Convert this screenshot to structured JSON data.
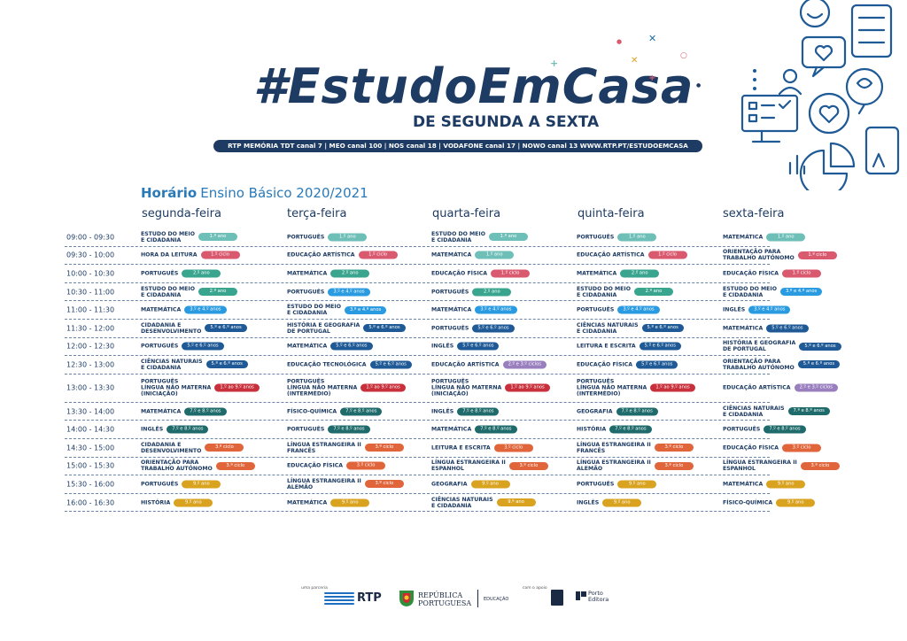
{
  "header": {
    "title": "#EstudoEmCasa",
    "subtitle": "DE SEGUNDA A SEXTA",
    "channels": "RTP MEMÓRIA  TDT canal 7 | MEO canal 100 | NOS canal 18 | VODAFONE canal 17 | NOWO canal 13    WWW.RTP.PT/ESTUDOEMCASA"
  },
  "schedule": {
    "heading_bold": "Horário",
    "heading_rest": "Ensino Básico 2020/2021",
    "days": [
      "segunda-feira",
      "terça-feira",
      "quarta-feira",
      "quinta-feira",
      "sexta-feira"
    ],
    "rows": [
      {
        "time": "09:00 - 09:30",
        "cells": [
          {
            "subject": [
              "ESTUDO DO MEIO",
              "E CIDADANIA"
            ],
            "level": "1.º ano",
            "color": "#6fbfb9"
          },
          {
            "subject": [
              "PORTUGUÊS"
            ],
            "level": "1.º ano",
            "color": "#6fbfb9"
          },
          {
            "subject": [
              "ESTUDO DO MEIO",
              "E CIDADANIA"
            ],
            "level": "1.º ano",
            "color": "#6fbfb9"
          },
          {
            "subject": [
              "PORTUGUÊS"
            ],
            "level": "1.º ano",
            "color": "#6fbfb9"
          },
          {
            "subject": [
              "MATEMÁTICA"
            ],
            "level": "1.º ano",
            "color": "#6fbfb9"
          }
        ]
      },
      {
        "time": "09:30 - 10:00",
        "cells": [
          {
            "subject": [
              "HORA DA LEITURA"
            ],
            "level": "1.º ciclo",
            "color": "#d9596f"
          },
          {
            "subject": [
              "EDUCAÇÃO ARTÍSTICA"
            ],
            "level": "1.º ciclo",
            "color": "#d9596f"
          },
          {
            "subject": [
              "MATEMÁTICA"
            ],
            "level": "1.º ano",
            "color": "#6fbfb9"
          },
          {
            "subject": [
              "EDUCAÇÃO ARTÍSTICA"
            ],
            "level": "1.º ciclo",
            "color": "#d9596f"
          },
          {
            "subject": [
              "ORIENTAÇÃO PARA",
              "TRABALHO AUTÓNOMO"
            ],
            "level": "1.º ciclo",
            "color": "#d9596f"
          }
        ]
      },
      {
        "time": "10:00 - 10:30",
        "cells": [
          {
            "subject": [
              "PORTUGUÊS"
            ],
            "level": "2.º ano",
            "color": "#3aa58f"
          },
          {
            "subject": [
              "MATEMÁTICA"
            ],
            "level": "2.º ano",
            "color": "#3aa58f"
          },
          {
            "subject": [
              "EDUCAÇÃO FÍSICA"
            ],
            "level": "1.º ciclo",
            "color": "#d9596f"
          },
          {
            "subject": [
              "MATEMÁTICA"
            ],
            "level": "2.º ano",
            "color": "#3aa58f"
          },
          {
            "subject": [
              "EDUCAÇÃO FÍSICA"
            ],
            "level": "1.º ciclo",
            "color": "#d9596f"
          }
        ]
      },
      {
        "time": "10:30 - 11:00",
        "cells": [
          {
            "subject": [
              "ESTUDO DO MEIO",
              "E CIDADANIA"
            ],
            "level": "2.º ano",
            "color": "#3aa58f"
          },
          {
            "subject": [
              "PORTUGUÊS"
            ],
            "level": "3.º e 4.º anos",
            "color": "#2a9be0"
          },
          {
            "subject": [
              "PORTUGUÊS"
            ],
            "level": "2.º ano",
            "color": "#3aa58f"
          },
          {
            "subject": [
              "ESTUDO DO MEIO",
              "E CIDADANIA"
            ],
            "level": "2.º ano",
            "color": "#3aa58f"
          },
          {
            "subject": [
              "ESTUDO DO MEIO",
              "E CIDADANIA"
            ],
            "level": "3.º e 4.º anos",
            "color": "#2a9be0"
          }
        ]
      },
      {
        "time": "11:00 - 11:30",
        "cells": [
          {
            "subject": [
              "MATEMÁTICA"
            ],
            "level": "3.º e 4.º anos",
            "color": "#2a9be0"
          },
          {
            "subject": [
              "ESTUDO DO MEIO",
              "E CIDADANIA"
            ],
            "level": "3.º e 4.º anos",
            "color": "#2a9be0"
          },
          {
            "subject": [
              "MATEMÁTICA"
            ],
            "level": "3.º e 4.º anos",
            "color": "#2a9be0"
          },
          {
            "subject": [
              "PORTUGUÊS"
            ],
            "level": "3.º e 4.º anos",
            "color": "#2a9be0"
          },
          {
            "subject": [
              "INGLÊS"
            ],
            "level": "3.º e 4.º anos",
            "color": "#2a9be0"
          }
        ]
      },
      {
        "time": "11:30 - 12:00",
        "cells": [
          {
            "subject": [
              "CIDADANIA E",
              "DESENVOLVIMENTO"
            ],
            "level": "5.º e 6.º anos",
            "color": "#1f5a96"
          },
          {
            "subject": [
              "HISTÓRIA E GEOGRAFIA",
              "DE PORTUGAL"
            ],
            "level": "5.º e 6.º anos",
            "color": "#1f5a96"
          },
          {
            "subject": [
              "PORTUGUÊS"
            ],
            "level": "5.º e 6.º anos",
            "color": "#1f5a96"
          },
          {
            "subject": [
              "CIÊNCIAS NATURAIS",
              "E CIDADANIA"
            ],
            "level": "5.º e 6.º anos",
            "color": "#1f5a96"
          },
          {
            "subject": [
              "MATEMÁTICA"
            ],
            "level": "5.º e 6.º anos",
            "color": "#1f5a96"
          }
        ]
      },
      {
        "time": "12:00 - 12:30",
        "cells": [
          {
            "subject": [
              "PORTUGUÊS"
            ],
            "level": "5.º e 6.º anos",
            "color": "#1f5a96"
          },
          {
            "subject": [
              "MATEMÁTICA"
            ],
            "level": "5.º e 6.º anos",
            "color": "#1f5a96"
          },
          {
            "subject": [
              "INGLÊS"
            ],
            "level": "5.º e 6.º anos",
            "color": "#1f5a96"
          },
          {
            "subject": [
              "LEITURA E ESCRITA"
            ],
            "level": "5.º e 6.º anos",
            "color": "#1f5a96"
          },
          {
            "subject": [
              "HISTÓRIA E GEOGRAFIA",
              "DE PORTUGAL"
            ],
            "level": "5.º e 6.º anos",
            "color": "#1f5a96"
          }
        ]
      },
      {
        "time": "12:30 - 13:00",
        "cells": [
          {
            "subject": [
              "CIÊNCIAS NATURAIS",
              "E CIDADANIA"
            ],
            "level": "5.º e 6.º anos",
            "color": "#1f5a96"
          },
          {
            "subject": [
              "EDUCAÇÃO TECNOLÓGICA"
            ],
            "level": "5.º e 6.º anos",
            "color": "#1f5a96"
          },
          {
            "subject": [
              "EDUCAÇÃO ARTÍSTICA"
            ],
            "level": "2.º e 3.º ciclos",
            "color": "#9a7fbf"
          },
          {
            "subject": [
              "EDUCAÇÃO FÍSICA"
            ],
            "level": "5.º e 6.º anos",
            "color": "#1f5a96"
          },
          {
            "subject": [
              "ORIENTAÇÃO PARA",
              "TRABALHO AUTÓNOMO"
            ],
            "level": "5.º e 6.º anos",
            "color": "#1f5a96"
          }
        ]
      },
      {
        "time": "13:00 - 13:30",
        "cells": [
          {
            "subject": [
              "PORTUGUÊS",
              "LÍNGUA NÃO MATERNA",
              "(INICIAÇÃO)"
            ],
            "level": "1.º ao 9.º anos",
            "color": "#c8313c"
          },
          {
            "subject": [
              "PORTUGUÊS",
              "LÍNGUA NÃO MATERNA",
              "(INTERMÉDIO)"
            ],
            "level": "1.º ao 9.º anos",
            "color": "#c8313c"
          },
          {
            "subject": [
              "PORTUGUÊS",
              "LÍNGUA NÃO MATERNA",
              "(INICIAÇÃO)"
            ],
            "level": "1.º ao 9.º anos",
            "color": "#c8313c"
          },
          {
            "subject": [
              "PORTUGUÊS",
              "LÍNGUA NÃO MATERNA",
              "(INTERMÉDIO)"
            ],
            "level": "1.º ao 9.º anos",
            "color": "#c8313c"
          },
          {
            "subject": [
              "EDUCAÇÃO ARTÍSTICA"
            ],
            "level": "2.º e 3.º ciclos",
            "color": "#9a7fbf"
          }
        ]
      },
      {
        "time": "13:30 - 14:00",
        "cells": [
          {
            "subject": [
              "MATEMÁTICA"
            ],
            "level": "7.º e 8.º anos",
            "color": "#1f6b6b"
          },
          {
            "subject": [
              "FÍSICO-QUÍMICA"
            ],
            "level": "7.º e 8.º anos",
            "color": "#1f6b6b"
          },
          {
            "subject": [
              "INGLÊS"
            ],
            "level": "7.º e 8.º anos",
            "color": "#1f6b6b"
          },
          {
            "subject": [
              "GEOGRAFIA"
            ],
            "level": "7.º e 8.º anos",
            "color": "#1f6b6b"
          },
          {
            "subject": [
              "CIÊNCIAS NATURAIS",
              "E CIDADANIA"
            ],
            "level": "7.º e 8.º anos",
            "color": "#1f6b6b"
          }
        ]
      },
      {
        "time": "14:00 - 14:30",
        "cells": [
          {
            "subject": [
              "INGLÊS"
            ],
            "level": "7.º e 8.º anos",
            "color": "#1f6b6b"
          },
          {
            "subject": [
              "PORTUGUÊS"
            ],
            "level": "7.º e 8.º anos",
            "color": "#1f6b6b"
          },
          {
            "subject": [
              "MATEMÁTICA"
            ],
            "level": "7.º e 8.º anos",
            "color": "#1f6b6b"
          },
          {
            "subject": [
              "HISTÓRIA"
            ],
            "level": "7.º e 8.º anos",
            "color": "#1f6b6b"
          },
          {
            "subject": [
              "PORTUGUÊS"
            ],
            "level": "7.º e 8.º anos",
            "color": "#1f6b6b"
          }
        ]
      },
      {
        "time": "14:30 - 15:00",
        "cells": [
          {
            "subject": [
              "CIDADANIA E",
              "DESENVOLVIMENTO"
            ],
            "level": "3.º ciclo",
            "color": "#e0653a"
          },
          {
            "subject": [
              "LÍNGUA ESTRANGEIRA II",
              "FRANCÊS"
            ],
            "level": "3.º ciclo",
            "color": "#e0653a"
          },
          {
            "subject": [
              "LEITURA E ESCRITA"
            ],
            "level": "3.º ciclo",
            "color": "#e0653a"
          },
          {
            "subject": [
              "LÍNGUA ESTRANGEIRA II",
              "FRANCÊS"
            ],
            "level": "3.º ciclo",
            "color": "#e0653a"
          },
          {
            "subject": [
              "EDUCAÇÃO FÍSICA"
            ],
            "level": "3.º ciclo",
            "color": "#e0653a"
          }
        ]
      },
      {
        "time": "15:00 - 15:30",
        "cells": [
          {
            "subject": [
              "ORIENTAÇÃO PARA",
              "TRABALHO AUTÓNOMO"
            ],
            "level": "3.º ciclo",
            "color": "#e0653a"
          },
          {
            "subject": [
              "EDUCAÇÃO FÍSICA"
            ],
            "level": "3.º ciclo",
            "color": "#e0653a"
          },
          {
            "subject": [
              "LÍNGUA ESTRANGEIRA II",
              "ESPANHOL"
            ],
            "level": "3.º ciclo",
            "color": "#e0653a"
          },
          {
            "subject": [
              "LÍNGUA ESTRANGEIRA II",
              "ALEMÃO"
            ],
            "level": "3.º ciclo",
            "color": "#e0653a"
          },
          {
            "subject": [
              "LÍNGUA ESTRANGEIRA II",
              "ESPANHOL"
            ],
            "level": "3.º ciclo",
            "color": "#e0653a"
          }
        ]
      },
      {
        "time": "15:30 - 16:00",
        "cells": [
          {
            "subject": [
              "PORTUGUÊS"
            ],
            "level": "9.º ano",
            "color": "#d9a21f"
          },
          {
            "subject": [
              "LÍNGUA ESTRANGEIRA II",
              "ALEMÃO"
            ],
            "level": "3.º ciclo",
            "color": "#e0653a"
          },
          {
            "subject": [
              "GEOGRAFIA"
            ],
            "level": "9.º ano",
            "color": "#d9a21f"
          },
          {
            "subject": [
              "PORTUGUÊS"
            ],
            "level": "9.º ano",
            "color": "#d9a21f"
          },
          {
            "subject": [
              "MATEMÁTICA"
            ],
            "level": "9.º ano",
            "color": "#d9a21f"
          }
        ]
      },
      {
        "time": "16:00 - 16:30",
        "cells": [
          {
            "subject": [
              "HISTÓRIA"
            ],
            "level": "9.º ano",
            "color": "#d9a21f"
          },
          {
            "subject": [
              "MATEMÁTICA"
            ],
            "level": "9.º ano",
            "color": "#d9a21f"
          },
          {
            "subject": [
              "CIÊNCIAS NATURAIS",
              "E CIDADANIA"
            ],
            "level": "9.º ano",
            "color": "#d9a21f"
          },
          {
            "subject": [
              "INGLÊS"
            ],
            "level": "9.º ano",
            "color": "#d9a21f"
          },
          {
            "subject": [
              "FÍSICO-QUÍMICA"
            ],
            "level": "9.º ano",
            "color": "#d9a21f"
          }
        ]
      }
    ]
  },
  "footer": {
    "partner_note": "uma parceria",
    "rtp": "RTP",
    "republic_line1": "REPÚBLICA",
    "republic_line2": "PORTUGUESA",
    "ministry": "EDUCAÇÃO",
    "support_note": "com o apoio",
    "porto_line1": "Porto",
    "porto_line2": "Editora"
  },
  "colors": {
    "navy": "#1d3b63",
    "accent_blue": "#2a7ab8"
  },
  "icons": [
    "pie-chart-icon",
    "dashboard-screen-icon",
    "heart-chat-icon",
    "touch-phone-icon",
    "brain-chat-icon",
    "sparkle-decoration-icon"
  ]
}
